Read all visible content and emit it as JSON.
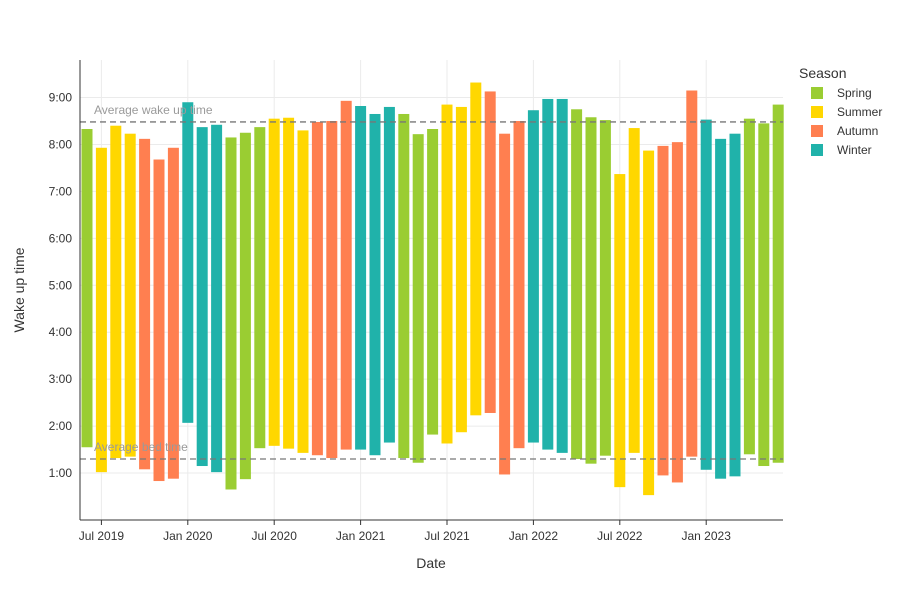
{
  "chart_data": {
    "type": "bar",
    "title": "",
    "xlabel": "Date",
    "ylabel": "Wake up time",
    "x_ticks": [
      "Jul 2019",
      "Jan 2020",
      "Jul 2020",
      "Jan 2021",
      "Jul 2021",
      "Jan 2022",
      "Jul 2022",
      "Jan 2023"
    ],
    "y_ticks": [
      "1:00",
      "2:00",
      "3:00",
      "4:00",
      "5:00",
      "6:00",
      "7:00",
      "8:00",
      "9:00"
    ],
    "y_unit": "hours after midnight",
    "ylim": [
      0.0,
      9.8
    ],
    "grid": true,
    "legend_position": "top-right",
    "legend": {
      "title": "Season",
      "entries": [
        {
          "name": "Spring",
          "color": "#9acd32"
        },
        {
          "name": "Summer",
          "color": "#ffd700"
        },
        {
          "name": "Autumn",
          "color": "#ff7f50"
        },
        {
          "name": "Winter",
          "color": "#20b2aa"
        }
      ]
    },
    "reference_lines": [
      {
        "label": "Average wake up time",
        "value": 8.48
      },
      {
        "label": "Average bed time",
        "value": 1.3
      }
    ],
    "bars": [
      {
        "month": "2019-06",
        "season": "Spring",
        "bed": 1.55,
        "wake": 8.33
      },
      {
        "month": "2019-07",
        "season": "Summer",
        "bed": 1.02,
        "wake": 7.93
      },
      {
        "month": "2019-08",
        "season": "Summer",
        "bed": 1.32,
        "wake": 8.4
      },
      {
        "month": "2019-09",
        "season": "Summer",
        "bed": 1.35,
        "wake": 8.23
      },
      {
        "month": "2019-10",
        "season": "Autumn",
        "bed": 1.08,
        "wake": 8.12
      },
      {
        "month": "2019-11",
        "season": "Autumn",
        "bed": 0.83,
        "wake": 7.68
      },
      {
        "month": "2019-12",
        "season": "Autumn",
        "bed": 0.88,
        "wake": 7.93
      },
      {
        "month": "2020-01",
        "season": "Winter",
        "bed": 2.07,
        "wake": 8.9
      },
      {
        "month": "2020-02",
        "season": "Winter",
        "bed": 1.15,
        "wake": 8.37
      },
      {
        "month": "2020-03",
        "season": "Winter",
        "bed": 1.02,
        "wake": 8.42
      },
      {
        "month": "2020-04",
        "season": "Spring",
        "bed": 0.65,
        "wake": 8.15
      },
      {
        "month": "2020-05",
        "season": "Spring",
        "bed": 0.87,
        "wake": 8.25
      },
      {
        "month": "2020-06",
        "season": "Spring",
        "bed": 1.53,
        "wake": 8.37
      },
      {
        "month": "2020-07",
        "season": "Summer",
        "bed": 1.58,
        "wake": 8.55
      },
      {
        "month": "2020-08",
        "season": "Summer",
        "bed": 1.52,
        "wake": 8.57
      },
      {
        "month": "2020-09",
        "season": "Summer",
        "bed": 1.43,
        "wake": 8.3
      },
      {
        "month": "2020-10",
        "season": "Autumn",
        "bed": 1.38,
        "wake": 8.48
      },
      {
        "month": "2020-11",
        "season": "Autumn",
        "bed": 1.32,
        "wake": 8.5
      },
      {
        "month": "2020-12",
        "season": "Autumn",
        "bed": 1.5,
        "wake": 8.93
      },
      {
        "month": "2021-01",
        "season": "Winter",
        "bed": 1.5,
        "wake": 8.82
      },
      {
        "month": "2021-02",
        "season": "Winter",
        "bed": 1.38,
        "wake": 8.65
      },
      {
        "month": "2021-03",
        "season": "Winter",
        "bed": 1.65,
        "wake": 8.8
      },
      {
        "month": "2021-04",
        "season": "Spring",
        "bed": 1.32,
        "wake": 8.65
      },
      {
        "month": "2021-05",
        "season": "Spring",
        "bed": 1.22,
        "wake": 8.22
      },
      {
        "month": "2021-06",
        "season": "Spring",
        "bed": 1.82,
        "wake": 8.33
      },
      {
        "month": "2021-07",
        "season": "Summer",
        "bed": 1.63,
        "wake": 8.85
      },
      {
        "month": "2021-08",
        "season": "Summer",
        "bed": 1.87,
        "wake": 8.8
      },
      {
        "month": "2021-09",
        "season": "Summer",
        "bed": 2.23,
        "wake": 9.32
      },
      {
        "month": "2021-10",
        "season": "Autumn",
        "bed": 2.28,
        "wake": 9.13
      },
      {
        "month": "2021-11",
        "season": "Autumn",
        "bed": 0.97,
        "wake": 8.23
      },
      {
        "month": "2021-12",
        "season": "Autumn",
        "bed": 1.53,
        "wake": 8.5
      },
      {
        "month": "2022-01",
        "season": "Winter",
        "bed": 1.65,
        "wake": 8.73
      },
      {
        "month": "2022-02",
        "season": "Winter",
        "bed": 1.5,
        "wake": 8.97
      },
      {
        "month": "2022-03",
        "season": "Winter",
        "bed": 1.43,
        "wake": 8.97
      },
      {
        "month": "2022-04",
        "season": "Spring",
        "bed": 1.3,
        "wake": 8.75
      },
      {
        "month": "2022-05",
        "season": "Spring",
        "bed": 1.2,
        "wake": 8.58
      },
      {
        "month": "2022-06",
        "season": "Spring",
        "bed": 1.37,
        "wake": 8.52
      },
      {
        "month": "2022-07",
        "season": "Summer",
        "bed": 0.7,
        "wake": 7.37
      },
      {
        "month": "2022-08",
        "season": "Summer",
        "bed": 1.43,
        "wake": 8.35
      },
      {
        "month": "2022-09",
        "season": "Summer",
        "bed": 0.53,
        "wake": 7.87
      },
      {
        "month": "2022-10",
        "season": "Autumn",
        "bed": 0.95,
        "wake": 7.97
      },
      {
        "month": "2022-11",
        "season": "Autumn",
        "bed": 0.8,
        "wake": 8.05
      },
      {
        "month": "2022-12",
        "season": "Autumn",
        "bed": 1.35,
        "wake": 9.15
      },
      {
        "month": "2023-01",
        "season": "Winter",
        "bed": 1.07,
        "wake": 8.53
      },
      {
        "month": "2023-02",
        "season": "Winter",
        "bed": 0.88,
        "wake": 8.12
      },
      {
        "month": "2023-03",
        "season": "Winter",
        "bed": 0.93,
        "wake": 8.23
      },
      {
        "month": "2023-04",
        "season": "Spring",
        "bed": 1.4,
        "wake": 8.55
      },
      {
        "month": "2023-05",
        "season": "Spring",
        "bed": 1.15,
        "wake": 8.45
      },
      {
        "month": "2023-06",
        "season": "Spring",
        "bed": 1.22,
        "wake": 8.85
      }
    ]
  }
}
